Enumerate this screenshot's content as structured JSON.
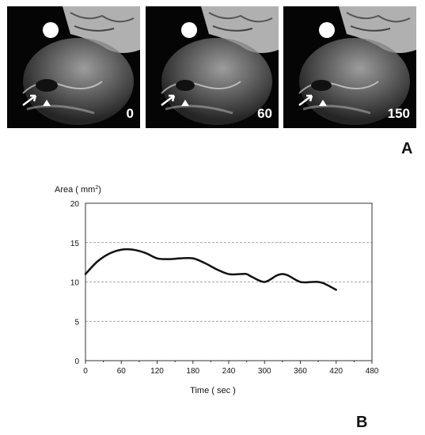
{
  "figure": {
    "panel_a_letter": "A",
    "panel_b_letter": "B",
    "frames": [
      {
        "label": "0"
      },
      {
        "label": "60"
      },
      {
        "label": "150"
      }
    ]
  },
  "chart_data": {
    "type": "line",
    "ylabel": "Area ( mm",
    "ylabel_sup": "2",
    "ylabel_end": ")",
    "xlabel": "Time ( sec )",
    "xlim": [
      0,
      480
    ],
    "ylim": [
      0,
      20
    ],
    "x_ticks": [
      0,
      60,
      120,
      180,
      240,
      300,
      360,
      420,
      480
    ],
    "y_ticks": [
      0,
      5,
      10,
      15,
      20
    ],
    "grid": "horizontal-dashed",
    "series": [
      {
        "x": [
          0,
          20,
          40,
          60,
          80,
          100,
          120,
          140,
          160,
          180,
          200,
          220,
          240,
          260,
          270,
          280,
          300,
          320,
          330,
          340,
          360,
          380,
          390,
          400,
          420
        ],
        "y": [
          11,
          12.6,
          13.6,
          14.1,
          14.1,
          13.7,
          13.0,
          12.9,
          13.0,
          13.0,
          12.4,
          11.6,
          11.0,
          11.0,
          11.0,
          10.6,
          10.0,
          10.8,
          11.0,
          10.8,
          10.0,
          10.0,
          10.0,
          9.8,
          9.0
        ]
      }
    ]
  },
  "colors": {
    "line": "#111111",
    "grid": "#888888",
    "axis": "#333333",
    "image_bg": "#050505"
  }
}
